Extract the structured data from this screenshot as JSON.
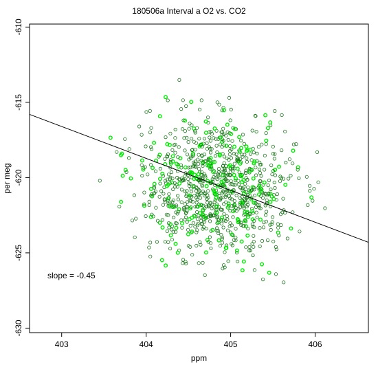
{
  "chart_data": {
    "type": "scatter",
    "title": "180506a   Interval a O2 vs. CO2",
    "xlabel": "ppm",
    "ylabel": "per meg",
    "xlim": [
      402.62,
      406.63
    ],
    "ylim": [
      -630.3,
      -609.8
    ],
    "xticks": [
      403,
      404,
      405,
      406
    ],
    "yticks": [
      -630,
      -625,
      -620,
      -615,
      -610
    ],
    "grid": false,
    "legend": "none",
    "annotation": "slope =  -0.45",
    "fit_line": {
      "slope": -0.45,
      "x": [
        402.62,
        406.63
      ],
      "y": [
        -615.8,
        -624.3
      ]
    },
    "colors": {
      "primary_points": "#1a7a1a",
      "highlight_points": "#00ee00",
      "line": "#000000"
    },
    "point_summary": {
      "x_center": 404.82,
      "y_center": -620.5,
      "x_spread": 0.62,
      "y_spread": 3.2,
      "approx_total_points": 1000,
      "approx_highlight_points": 220,
      "marker": "open-circle"
    }
  }
}
